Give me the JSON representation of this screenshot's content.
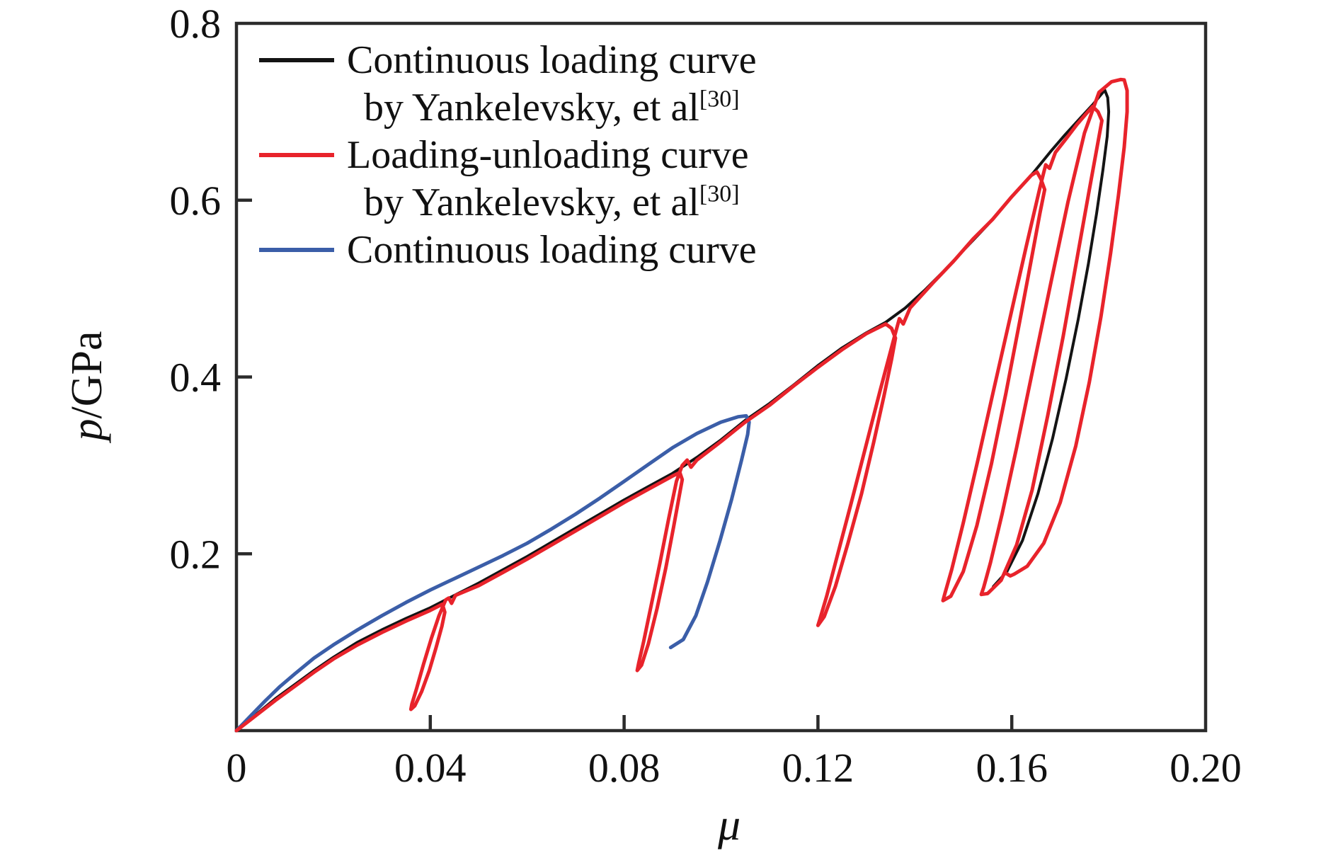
{
  "legend": {
    "entries": [
      {
        "line1": "Continuous loading curve",
        "line2": "by Yankelevsky, et al",
        "citation": "[30]",
        "color": "#141414"
      },
      {
        "line1": "Loading-unloading curve",
        "line2": "by Yankelevsky, et al",
        "citation": "[30]",
        "color": "#e8232b"
      },
      {
        "line1": "Continuous loading curve",
        "color": "#3b5ea8"
      }
    ]
  },
  "axes": {
    "ylabel_italic": "p",
    "ylabel_rest": "/GPa",
    "xlabel": "μ"
  },
  "chart_data": {
    "type": "line",
    "title": "",
    "xlabel": "μ",
    "ylabel": "p/GPa",
    "xlim": [
      0,
      0.2
    ],
    "ylim": [
      0,
      0.8
    ],
    "grid": false,
    "legend_position": "top-left-inside",
    "axis_color": "#2b2b2b",
    "text_color": "#111111",
    "x_tick_values": [
      0,
      0.04,
      0.08,
      0.12,
      0.16,
      0.2
    ],
    "x_tick_labels": [
      "0",
      "0.04",
      "0.08",
      "0.12",
      "0.16",
      "0.20"
    ],
    "y_tick_values": [
      0.2,
      0.4,
      0.6,
      0.8
    ],
    "y_tick_labels": [
      "0.2",
      "0.4",
      "0.6",
      "0.8"
    ],
    "series": [
      {
        "name": "Continuous loading curve by Yankelevsky, et al [30]",
        "color": "#141414",
        "width": 4,
        "points": [
          [
            0.0,
            0.0
          ],
          [
            0.004,
            0.018
          ],
          [
            0.008,
            0.036
          ],
          [
            0.012,
            0.052
          ],
          [
            0.016,
            0.068
          ],
          [
            0.02,
            0.083
          ],
          [
            0.025,
            0.1
          ],
          [
            0.03,
            0.114
          ],
          [
            0.035,
            0.127
          ],
          [
            0.04,
            0.139
          ],
          [
            0.045,
            0.153
          ],
          [
            0.05,
            0.167
          ],
          [
            0.055,
            0.182
          ],
          [
            0.06,
            0.197
          ],
          [
            0.065,
            0.213
          ],
          [
            0.07,
            0.229
          ],
          [
            0.075,
            0.245
          ],
          [
            0.08,
            0.261
          ],
          [
            0.085,
            0.276
          ],
          [
            0.09,
            0.291
          ],
          [
            0.095,
            0.309
          ],
          [
            0.1,
            0.329
          ],
          [
            0.105,
            0.351
          ],
          [
            0.11,
            0.37
          ],
          [
            0.115,
            0.391
          ],
          [
            0.12,
            0.413
          ],
          [
            0.125,
            0.433
          ],
          [
            0.13,
            0.45
          ],
          [
            0.134,
            0.462
          ],
          [
            0.138,
            0.478
          ],
          [
            0.142,
            0.498
          ],
          [
            0.146,
            0.52
          ],
          [
            0.15,
            0.543
          ],
          [
            0.155,
            0.572
          ],
          [
            0.16,
            0.604
          ],
          [
            0.1646,
            0.632
          ],
          [
            0.168,
            0.655
          ],
          [
            0.171,
            0.674
          ],
          [
            0.174,
            0.692
          ],
          [
            0.1767,
            0.708
          ],
          [
            0.1782,
            0.718
          ],
          [
            0.1792,
            0.7245
          ],
          [
            0.1798,
            0.716
          ],
          [
            0.18,
            0.7
          ],
          [
            0.1797,
            0.672
          ],
          [
            0.1788,
            0.634
          ],
          [
            0.1775,
            0.585
          ],
          [
            0.1758,
            0.528
          ],
          [
            0.1737,
            0.465
          ],
          [
            0.1712,
            0.398
          ],
          [
            0.1684,
            0.33
          ],
          [
            0.1654,
            0.268
          ],
          [
            0.1622,
            0.215
          ],
          [
            0.159,
            0.18
          ],
          [
            0.1562,
            0.163
          ]
        ]
      },
      {
        "name": "Continuous loading curve",
        "color": "#3b5ea8",
        "width": 5,
        "points": [
          [
            0.0,
            0.0
          ],
          [
            0.003,
            0.017
          ],
          [
            0.006,
            0.034
          ],
          [
            0.009,
            0.05
          ],
          [
            0.012,
            0.064
          ],
          [
            0.016,
            0.082
          ],
          [
            0.02,
            0.097
          ],
          [
            0.025,
            0.114
          ],
          [
            0.03,
            0.13
          ],
          [
            0.035,
            0.145
          ],
          [
            0.04,
            0.159
          ],
          [
            0.045,
            0.172
          ],
          [
            0.05,
            0.185
          ],
          [
            0.055,
            0.198
          ],
          [
            0.06,
            0.212
          ],
          [
            0.065,
            0.228
          ],
          [
            0.07,
            0.245
          ],
          [
            0.075,
            0.263
          ],
          [
            0.08,
            0.282
          ],
          [
            0.085,
            0.301
          ],
          [
            0.09,
            0.32
          ],
          [
            0.095,
            0.336
          ],
          [
            0.1,
            0.349
          ],
          [
            0.1035,
            0.355
          ],
          [
            0.1052,
            0.356
          ],
          [
            0.1058,
            0.349
          ],
          [
            0.1055,
            0.335
          ],
          [
            0.1042,
            0.305
          ],
          [
            0.1022,
            0.262
          ],
          [
            0.0998,
            0.215
          ],
          [
            0.0972,
            0.168
          ],
          [
            0.0948,
            0.13
          ],
          [
            0.0922,
            0.103
          ],
          [
            0.0896,
            0.094
          ]
        ]
      },
      {
        "name": "Loading-unloading curve by Yankelevsky, et al [30]",
        "color": "#e8232b",
        "width": 5,
        "points": [
          [
            0.0,
            0.0
          ],
          [
            0.004,
            0.017
          ],
          [
            0.008,
            0.034
          ],
          [
            0.012,
            0.05
          ],
          [
            0.016,
            0.066
          ],
          [
            0.02,
            0.081
          ],
          [
            0.025,
            0.097
          ],
          [
            0.03,
            0.111
          ],
          [
            0.035,
            0.124
          ],
          [
            0.04,
            0.136
          ],
          [
            0.0425,
            0.143
          ],
          [
            0.043,
            0.134
          ],
          [
            0.0424,
            0.118
          ],
          [
            0.0412,
            0.094
          ],
          [
            0.0398,
            0.068
          ],
          [
            0.0382,
            0.044
          ],
          [
            0.0368,
            0.028
          ],
          [
            0.036,
            0.024
          ],
          [
            0.0362,
            0.03
          ],
          [
            0.0372,
            0.048
          ],
          [
            0.0386,
            0.075
          ],
          [
            0.0402,
            0.104
          ],
          [
            0.0418,
            0.13
          ],
          [
            0.0432,
            0.148
          ],
          [
            0.0438,
            0.15
          ],
          [
            0.0444,
            0.144
          ],
          [
            0.0452,
            0.153
          ],
          [
            0.05,
            0.164
          ],
          [
            0.055,
            0.179
          ],
          [
            0.06,
            0.194
          ],
          [
            0.065,
            0.21
          ],
          [
            0.07,
            0.226
          ],
          [
            0.075,
            0.242
          ],
          [
            0.08,
            0.258
          ],
          [
            0.085,
            0.273
          ],
          [
            0.09,
            0.288
          ],
          [
            0.0915,
            0.292
          ],
          [
            0.092,
            0.284
          ],
          [
            0.0914,
            0.266
          ],
          [
            0.0902,
            0.23
          ],
          [
            0.0886,
            0.184
          ],
          [
            0.0868,
            0.138
          ],
          [
            0.085,
            0.098
          ],
          [
            0.0836,
            0.074
          ],
          [
            0.0827,
            0.068
          ],
          [
            0.083,
            0.076
          ],
          [
            0.084,
            0.1
          ],
          [
            0.0856,
            0.142
          ],
          [
            0.0874,
            0.19
          ],
          [
            0.0892,
            0.24
          ],
          [
            0.0908,
            0.282
          ],
          [
            0.092,
            0.3
          ],
          [
            0.093,
            0.306
          ],
          [
            0.0938,
            0.298
          ],
          [
            0.095,
            0.306
          ],
          [
            0.1,
            0.327
          ],
          [
            0.105,
            0.349
          ],
          [
            0.11,
            0.368
          ],
          [
            0.115,
            0.39
          ],
          [
            0.12,
            0.411
          ],
          [
            0.125,
            0.431
          ],
          [
            0.13,
            0.449
          ],
          [
            0.134,
            0.46
          ],
          [
            0.1352,
            0.455
          ],
          [
            0.136,
            0.444
          ],
          [
            0.1352,
            0.42
          ],
          [
            0.1336,
            0.378
          ],
          [
            0.1315,
            0.326
          ],
          [
            0.129,
            0.268
          ],
          [
            0.1262,
            0.212
          ],
          [
            0.1236,
            0.163
          ],
          [
            0.1213,
            0.129
          ],
          [
            0.12,
            0.119
          ],
          [
            0.1204,
            0.126
          ],
          [
            0.1218,
            0.152
          ],
          [
            0.124,
            0.198
          ],
          [
            0.1268,
            0.256
          ],
          [
            0.1298,
            0.32
          ],
          [
            0.1328,
            0.384
          ],
          [
            0.1356,
            0.442
          ],
          [
            0.1368,
            0.466
          ],
          [
            0.1376,
            0.46
          ],
          [
            0.139,
            0.478
          ],
          [
            0.144,
            0.508
          ],
          [
            0.148,
            0.531
          ],
          [
            0.152,
            0.556
          ],
          [
            0.156,
            0.578
          ],
          [
            0.16,
            0.604
          ],
          [
            0.164,
            0.628
          ],
          [
            0.1652,
            0.632
          ],
          [
            0.166,
            0.624
          ],
          [
            0.1668,
            0.612
          ],
          [
            0.1658,
            0.585
          ],
          [
            0.164,
            0.532
          ],
          [
            0.1616,
            0.462
          ],
          [
            0.1588,
            0.382
          ],
          [
            0.1558,
            0.302
          ],
          [
            0.1528,
            0.232
          ],
          [
            0.15,
            0.18
          ],
          [
            0.1474,
            0.152
          ],
          [
            0.1458,
            0.147
          ],
          [
            0.1462,
            0.155
          ],
          [
            0.1476,
            0.182
          ],
          [
            0.15,
            0.235
          ],
          [
            0.153,
            0.306
          ],
          [
            0.1562,
            0.384
          ],
          [
            0.1596,
            0.466
          ],
          [
            0.163,
            0.548
          ],
          [
            0.1658,
            0.614
          ],
          [
            0.167,
            0.64
          ],
          [
            0.1678,
            0.636
          ],
          [
            0.169,
            0.654
          ],
          [
            0.171,
            0.668
          ],
          [
            0.1735,
            0.686
          ],
          [
            0.1757,
            0.7
          ],
          [
            0.1767,
            0.706
          ],
          [
            0.1778,
            0.7
          ],
          [
            0.1786,
            0.69
          ],
          [
            0.1776,
            0.66
          ],
          [
            0.1758,
            0.606
          ],
          [
            0.1734,
            0.532
          ],
          [
            0.1706,
            0.446
          ],
          [
            0.1674,
            0.356
          ],
          [
            0.1642,
            0.272
          ],
          [
            0.161,
            0.21
          ],
          [
            0.1578,
            0.17
          ],
          [
            0.155,
            0.155
          ],
          [
            0.1537,
            0.154
          ],
          [
            0.1542,
            0.162
          ],
          [
            0.1556,
            0.19
          ],
          [
            0.158,
            0.245
          ],
          [
            0.161,
            0.32
          ],
          [
            0.1644,
            0.41
          ],
          [
            0.168,
            0.505
          ],
          [
            0.1716,
            0.598
          ],
          [
            0.175,
            0.676
          ],
          [
            0.178,
            0.722
          ],
          [
            0.1806,
            0.734
          ],
          [
            0.1825,
            0.7365
          ],
          [
            0.1832,
            0.736
          ],
          [
            0.1838,
            0.724
          ],
          [
            0.1838,
            0.7
          ],
          [
            0.1832,
            0.66
          ],
          [
            0.182,
            0.605
          ],
          [
            0.1804,
            0.54
          ],
          [
            0.1784,
            0.468
          ],
          [
            0.176,
            0.394
          ],
          [
            0.1732,
            0.322
          ],
          [
            0.17,
            0.258
          ],
          [
            0.1666,
            0.212
          ],
          [
            0.1632,
            0.186
          ],
          [
            0.1605,
            0.177
          ],
          [
            0.1597,
            0.175
          ],
          [
            0.1588,
            0.178
          ]
        ]
      }
    ]
  }
}
